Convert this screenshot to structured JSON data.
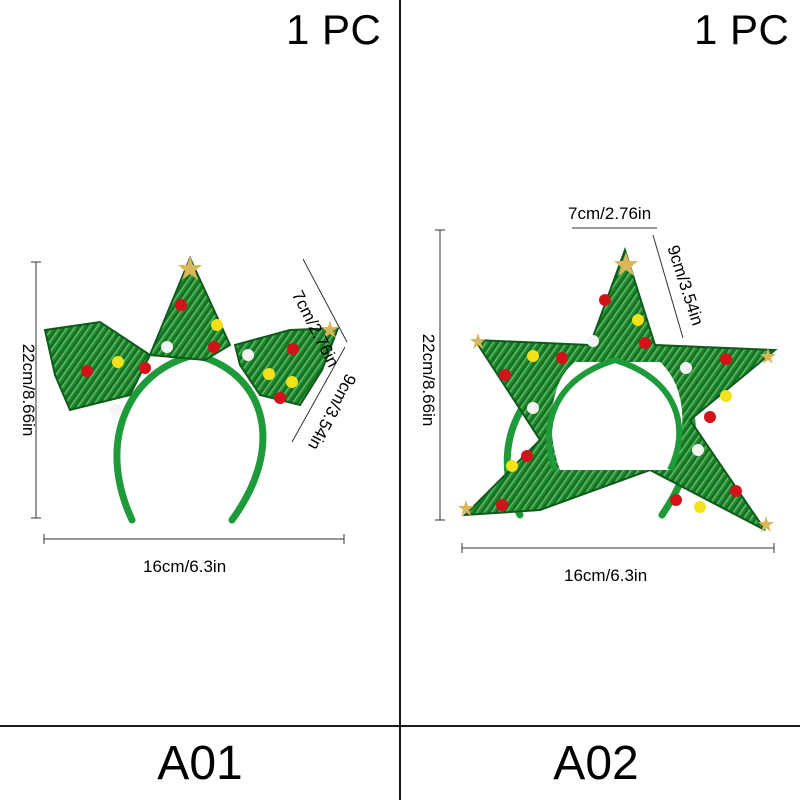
{
  "panels": [
    {
      "quantity": "1 PC",
      "code": "A01",
      "dims": {
        "height": "22cm/8.66in",
        "width": "16cm/6.3in",
        "top_width": "7cm/2.76in",
        "top_height": "9cm/3.54in"
      }
    },
    {
      "quantity": "1 PC",
      "code": "A02",
      "dims": {
        "height": "22cm/8.66in",
        "width": "16cm/6.3in",
        "top_width": "7cm/2.76in",
        "top_height": "9cm/3.54in"
      }
    }
  ],
  "colors": {
    "tinsel_green": "#1f8a2e",
    "tinsel_dark": "#0d5a1a",
    "band_green": "#1e9a3a",
    "pom_red": "#d4121a",
    "pom_yellow": "#f2e21a",
    "pom_white": "#f4f4f4",
    "star_gold": "#d9b65a"
  }
}
